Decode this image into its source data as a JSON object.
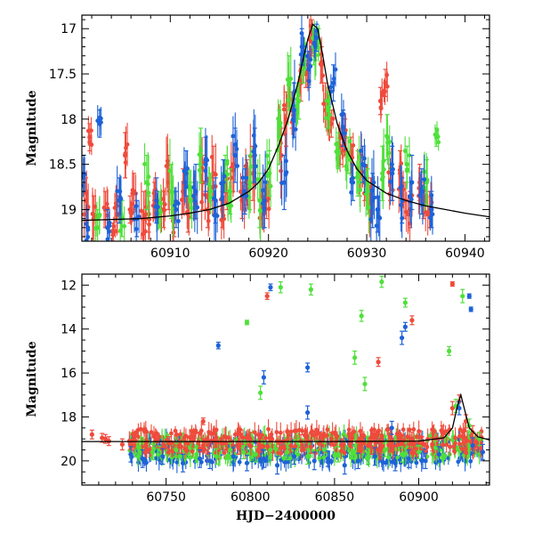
{
  "chart_data": [
    {
      "type": "scatter",
      "title": "",
      "xlabel": "",
      "ylabel": "Magnitude",
      "xlim": [
        60901,
        60942.5
      ],
      "ylim": [
        19.35,
        16.85
      ],
      "y_inverted": true,
      "x_ticks": [
        60910,
        60920,
        60930,
        60940
      ],
      "y_ticks": [
        17,
        17.5,
        18,
        18.5,
        19
      ],
      "colors": {
        "red": "#ef4b3c",
        "green": "#4fe03a",
        "blue": "#1e62d8",
        "model": "#000000"
      },
      "model_curve": {
        "x": [
          60901,
          60904,
          60907,
          60910,
          60912,
          60914,
          60916,
          60918,
          60919,
          60920,
          60921,
          60922,
          60923,
          60923.5,
          60924,
          60924.5,
          60925,
          60925.5,
          60926,
          60927,
          60928,
          60929,
          60930,
          60932,
          60934,
          60936,
          60938,
          60940,
          60942.5
        ],
        "y": [
          19.12,
          19.11,
          19.1,
          19.07,
          19.04,
          19.0,
          18.93,
          18.8,
          18.7,
          18.55,
          18.3,
          18.0,
          17.6,
          17.35,
          17.12,
          16.95,
          17.0,
          17.28,
          17.6,
          18.05,
          18.35,
          18.55,
          18.68,
          18.82,
          18.9,
          18.96,
          19.0,
          19.04,
          19.08
        ]
      },
      "series": [
        {
          "name": "",
          "color": "#ef4b3c",
          "x": [
            60901.4,
            60901.8,
            60902.2,
            60903.4,
            60904.2,
            60904.6,
            60905.4,
            60905.9,
            60906.3,
            60907.3,
            60907.8,
            60908.4,
            60909.3,
            60909.8,
            60910.4,
            60911.3,
            60911.8,
            60912.4,
            60913.3,
            60913.8,
            60914.4,
            60915.3,
            60915.8,
            60916.4,
            60917.3,
            60917.8,
            60918.4,
            60919.3,
            60919.8,
            60921.3,
            60921.8,
            60922.4,
            60923.3,
            60923.8,
            60924.4,
            60925.4,
            60925.8,
            60926.4,
            60927.3,
            60927.8,
            60928.4,
            60929.3,
            60929.8,
            60930.4,
            60931.4,
            60931.9,
            60932.4,
            60933.4,
            60933.8,
            60934.4,
            60935.4,
            60935.8,
            60936.4
          ],
          "y": [
            18.9,
            18.2,
            19.1,
            19.0,
            19.25,
            19.05,
            18.4,
            19.0,
            18.8,
            19.1,
            19.05,
            18.9,
            19.0,
            18.7,
            19.1,
            18.8,
            19.05,
            18.9,
            18.7,
            19.0,
            18.6,
            19.0,
            18.8,
            18.5,
            18.9,
            18.7,
            18.6,
            19.0,
            18.9,
            18.4,
            18.0,
            17.9,
            17.6,
            17.5,
            17.1,
            17.4,
            17.8,
            18.05,
            18.3,
            18.2,
            18.4,
            18.6,
            18.7,
            18.9,
            17.8,
            17.6,
            18.7,
            18.6,
            18.9,
            19.0,
            18.7,
            18.9,
            19.0
          ],
          "err": [
            0.25,
            0.15,
            0.25,
            0.2,
            0.1,
            0.2,
            0.25,
            0.15,
            0.2,
            0.3,
            0.2,
            0.2,
            0.2,
            0.3,
            0.2,
            0.25,
            0.2,
            0.2,
            0.3,
            0.2,
            0.3,
            0.2,
            0.2,
            0.3,
            0.2,
            0.25,
            0.3,
            0.2,
            0.2,
            0.3,
            0.3,
            0.2,
            0.2,
            0.15,
            0.2,
            0.2,
            0.2,
            0.15,
            0.2,
            0.2,
            0.2,
            0.25,
            0.2,
            0.25,
            0.15,
            0.15,
            0.2,
            0.25,
            0.2,
            0.2,
            0.2,
            0.2,
            0.2
          ]
        },
        {
          "name": "",
          "color": "#4fe03a",
          "x": [
            60902.6,
            60905.1,
            60907.6,
            60908.9,
            60910.1,
            60912.1,
            60913.1,
            60914.1,
            60915.6,
            60916.1,
            60918.1,
            60919.1,
            60920.1,
            60921.1,
            60922.1,
            60923.1,
            60923.6,
            60924.6,
            60925.1,
            60926.1,
            60927.1,
            60928.1,
            60929.1,
            60930.1,
            60931.6,
            60932.1,
            60934.1,
            60936.1,
            60937.1
          ],
          "y": [
            19.2,
            19.1,
            18.7,
            19.0,
            18.8,
            18.9,
            18.4,
            18.8,
            18.6,
            18.8,
            18.7,
            18.9,
            18.6,
            18.2,
            17.6,
            17.8,
            17.4,
            17.2,
            17.15,
            17.9,
            18.35,
            18.4,
            18.6,
            18.8,
            18.6,
            18.2,
            18.5,
            18.7,
            18.2
          ],
          "err": [
            0.2,
            0.2,
            0.3,
            0.2,
            0.3,
            0.2,
            0.3,
            0.2,
            0.2,
            0.25,
            0.3,
            0.3,
            0.25,
            0.3,
            0.3,
            0.2,
            0.2,
            0.2,
            0.15,
            0.2,
            0.2,
            0.2,
            0.25,
            0.25,
            0.3,
            0.25,
            0.2,
            0.25,
            0.1
          ]
        },
        {
          "name": "",
          "color": "#1e62d8",
          "x": [
            60901.2,
            60901.6,
            60902.8,
            60903.6,
            60904.8,
            60906.6,
            60908.6,
            60910.6,
            60911.6,
            60912.6,
            60913.6,
            60914.6,
            60915.4,
            60916.6,
            60917.6,
            60918.6,
            60919.6,
            60921.6,
            60922.6,
            60923.4,
            60924.1,
            60924.9,
            60926.6,
            60927.6,
            60928.6,
            60929.6,
            60930.6,
            60931.1,
            60932.6,
            60933.6,
            60934.6,
            60935.6,
            60936.6
          ],
          "y": [
            18.6,
            19.2,
            18.05,
            19.2,
            18.9,
            19.1,
            18.9,
            19.0,
            18.6,
            18.8,
            18.5,
            18.9,
            18.7,
            18.4,
            18.8,
            18.4,
            18.9,
            18.7,
            17.9,
            17.2,
            17.45,
            17.1,
            17.6,
            18.1,
            18.7,
            18.5,
            18.9,
            19.0,
            18.6,
            18.9,
            18.7,
            18.8,
            19.0
          ],
          "err": [
            0.2,
            0.2,
            0.15,
            0.2,
            0.25,
            0.2,
            0.25,
            0.2,
            0.25,
            0.3,
            0.3,
            0.25,
            0.25,
            0.3,
            0.25,
            0.3,
            0.3,
            0.3,
            0.3,
            0.2,
            0.2,
            0.15,
            0.2,
            0.2,
            0.2,
            0.2,
            0.3,
            0.25,
            0.3,
            0.25,
            0.3,
            0.25,
            0.2
          ]
        }
      ]
    },
    {
      "type": "scatter",
      "title": "",
      "xlabel": "HJD−2400000",
      "ylabel": "Magnitude",
      "xlim": [
        60700,
        60942
      ],
      "ylim": [
        21.1,
        11.5
      ],
      "y_inverted": true,
      "x_ticks": [
        60750,
        60800,
        60850,
        60900
      ],
      "y_ticks": [
        12,
        14,
        16,
        18,
        20
      ],
      "colors": {
        "red": "#ef4b3c",
        "green": "#4fe03a",
        "blue": "#1e62d8",
        "model": "#000000"
      },
      "model_curve": {
        "x": [
          60700,
          60750,
          60800,
          60850,
          60900,
          60915,
          60920,
          60923,
          60925,
          60927,
          60930,
          60935,
          60942
        ],
        "y": [
          19.12,
          19.12,
          19.12,
          19.12,
          19.1,
          18.95,
          18.5,
          17.5,
          17.0,
          17.6,
          18.5,
          18.9,
          19.05
        ]
      },
      "series": [
        {
          "name": "",
          "color": "#ef4b3c",
          "x": [
            60706,
            60712,
            60716,
            60724,
            60731,
            60738,
            60745,
            60752,
            60759,
            60766,
            60772,
            60779,
            60786,
            60793,
            60800,
            60806,
            60812,
            60818,
            60824,
            60830,
            60836,
            60842,
            60848,
            60854,
            60860,
            60866,
            60872,
            60878,
            60884,
            60890,
            60896,
            60902,
            60908,
            60914,
            60920,
            60924,
            60928,
            60932,
            60936,
            60810,
            60876,
            60896,
            60920,
            60714,
            60772
          ],
          "y": [
            18.8,
            18.95,
            19.1,
            19.25,
            19.0,
            19.3,
            19.1,
            19.2,
            19.35,
            19.05,
            19.3,
            19.1,
            19.2,
            19.4,
            19.0,
            19.3,
            19.1,
            19.4,
            19.3,
            19.1,
            19.35,
            19.2,
            19.0,
            19.3,
            19.1,
            19.2,
            19.4,
            19.1,
            19.3,
            19.2,
            19.0,
            19.2,
            19.25,
            18.7,
            17.6,
            17.3,
            18.2,
            18.7,
            19.0,
            12.5,
            15.5,
            13.6,
            11.95,
            19.0,
            18.2
          ],
          "err": [
            0.2,
            0.2,
            0.2,
            0.25,
            0.3,
            0.3,
            0.3,
            0.3,
            0.3,
            0.3,
            0.3,
            0.3,
            0.3,
            0.3,
            0.3,
            0.3,
            0.3,
            0.3,
            0.3,
            0.3,
            0.3,
            0.3,
            0.3,
            0.3,
            0.3,
            0.3,
            0.3,
            0.3,
            0.3,
            0.3,
            0.3,
            0.3,
            0.3,
            0.3,
            0.3,
            0.3,
            0.3,
            0.3,
            0.3,
            0.15,
            0.2,
            0.2,
            0.1,
            0.2,
            0.15
          ]
        },
        {
          "name": "",
          "color": "#4fe03a",
          "x": [
            60734,
            60742,
            60756,
            60768,
            60780,
            60788,
            60796,
            60803,
            60812,
            60822,
            60834,
            60844,
            60852,
            60862,
            60870,
            60880,
            60890,
            60900,
            60910,
            60922,
            60930,
            60936,
            60818,
            60836,
            60866,
            60878,
            60892,
            60918,
            60926,
            60806,
            60798,
            60862,
            60868
          ],
          "y": [
            19.4,
            19.6,
            19.5,
            19.7,
            19.8,
            19.5,
            19.6,
            19.7,
            19.5,
            19.6,
            19.8,
            19.5,
            19.7,
            19.6,
            19.8,
            19.5,
            19.7,
            19.6,
            19.4,
            17.5,
            18.4,
            19.0,
            12.1,
            12.2,
            13.4,
            11.85,
            12.8,
            15.0,
            12.5,
            16.9,
            13.7,
            15.3,
            16.5
          ],
          "err": [
            0.3,
            0.35,
            0.3,
            0.35,
            0.35,
            0.3,
            0.3,
            0.35,
            0.3,
            0.35,
            0.35,
            0.3,
            0.35,
            0.3,
            0.35,
            0.3,
            0.35,
            0.3,
            0.3,
            0.3,
            0.3,
            0.3,
            0.25,
            0.25,
            0.25,
            0.25,
            0.2,
            0.2,
            0.3,
            0.3,
            0.1,
            0.3,
            0.3
          ]
        },
        {
          "name": "",
          "color": "#1e62d8",
          "x": [
            60729,
            60736,
            60748,
            60760,
            60770,
            60776,
            60790,
            60798,
            60808,
            60816,
            60826,
            60838,
            60846,
            60856,
            60864,
            60874,
            60886,
            60894,
            60904,
            60912,
            60924,
            60932,
            60938,
            60781,
            60812,
            60834,
            60890,
            60892,
            60930,
            60931,
            60808,
            60834,
            60884
          ],
          "y": [
            19.7,
            19.9,
            19.8,
            20.1,
            19.9,
            20.0,
            19.8,
            20.1,
            19.9,
            20.2,
            19.8,
            20.0,
            19.9,
            20.2,
            20.0,
            19.8,
            20.1,
            19.9,
            20.0,
            19.7,
            17.6,
            19.3,
            19.6,
            14.75,
            12.1,
            15.75,
            14.4,
            13.9,
            12.5,
            13.1,
            16.2,
            17.8,
            18.5
          ],
          "err": [
            0.35,
            0.4,
            0.35,
            0.4,
            0.4,
            0.35,
            0.4,
            0.35,
            0.4,
            0.4,
            0.35,
            0.4,
            0.35,
            0.4,
            0.35,
            0.4,
            0.35,
            0.4,
            0.35,
            0.35,
            0.3,
            0.35,
            0.35,
            0.15,
            0.15,
            0.2,
            0.3,
            0.2,
            0.1,
            0.1,
            0.3,
            0.3,
            0.3
          ]
        }
      ],
      "dense_band": {
        "x": [
          60728,
          60938
        ],
        "y_center": 19.1,
        "y_spread": 0.55
      }
    }
  ]
}
